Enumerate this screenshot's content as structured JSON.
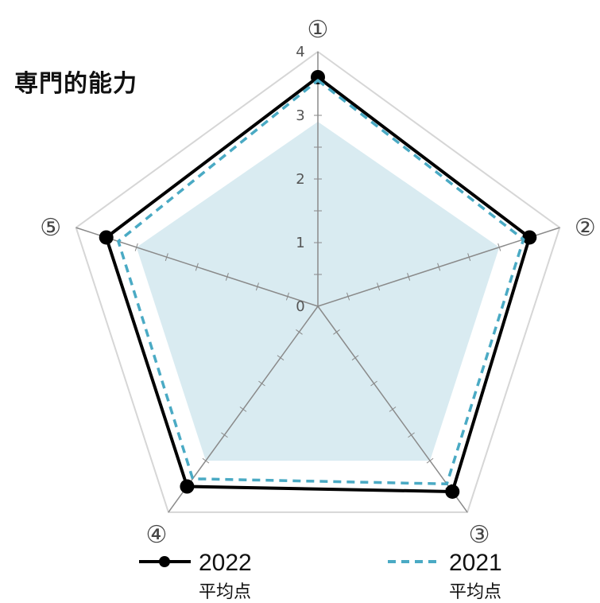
{
  "title": "専門的能力",
  "chart_data": {
    "type": "radar",
    "title": "専門的能力",
    "axes": [
      "①",
      "②",
      "③",
      "④",
      "⑤"
    ],
    "rlim": [
      0,
      4
    ],
    "ticks": [
      "0",
      "1",
      "2",
      "3",
      "4"
    ],
    "grid": true,
    "legend_position": "bottom",
    "series": [
      {
        "name": "2022",
        "sub": "平均点",
        "values": [
          3.6,
          3.5,
          3.6,
          3.5,
          3.5
        ],
        "color": "#000000",
        "style": "solid-marker"
      },
      {
        "name": "2021",
        "sub": "平均点",
        "values": [
          3.55,
          3.4,
          3.45,
          3.35,
          3.3
        ],
        "color": "#4aaac4",
        "style": "dashed"
      },
      {
        "name": "",
        "sub": "",
        "values": [
          2.9,
          3.0,
          3.0,
          3.0,
          3.0
        ],
        "color": "#cfe6ee",
        "style": "area"
      }
    ]
  }
}
